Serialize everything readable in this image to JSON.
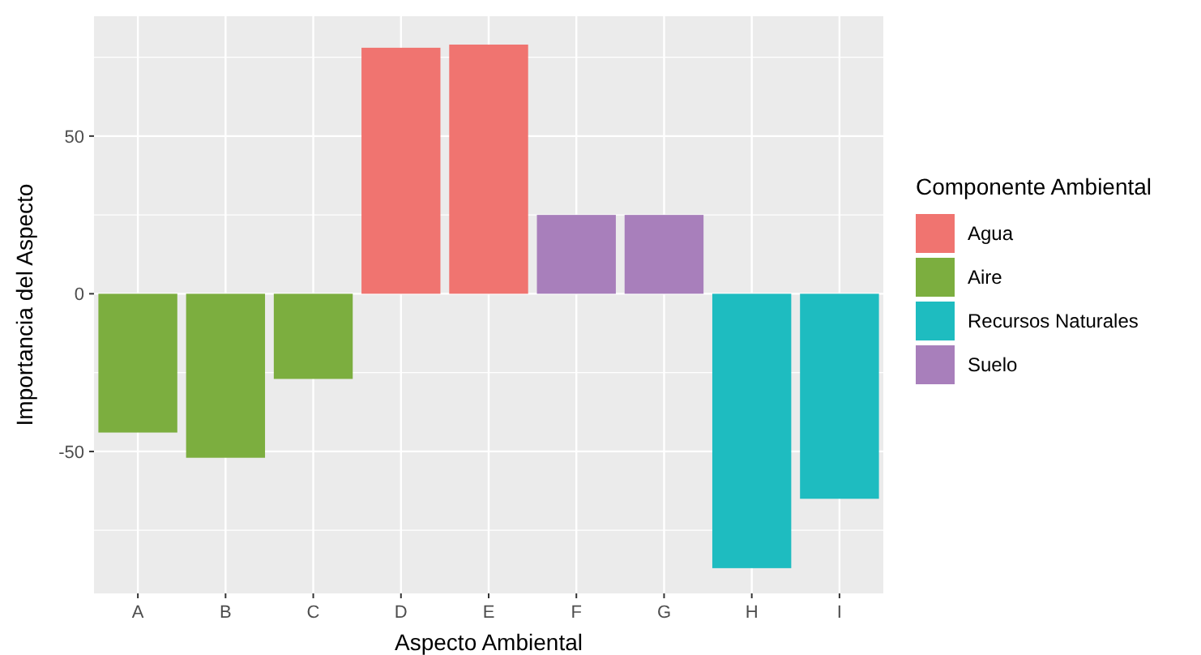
{
  "chart_data": {
    "type": "bar",
    "xlabel": "Aspecto Ambiental",
    "ylabel": "Importancia del Aspecto",
    "legend_title": "Componente Ambiental",
    "categories": [
      "A",
      "B",
      "C",
      "D",
      "E",
      "F",
      "G",
      "H",
      "I"
    ],
    "series": [
      {
        "name": "Agua",
        "color": "#f07470",
        "values": [
          null,
          null,
          null,
          78,
          79,
          null,
          null,
          null,
          null
        ]
      },
      {
        "name": "Aire",
        "color": "#7cae3f",
        "values": [
          -44,
          -52,
          -27,
          null,
          null,
          null,
          null,
          null,
          null
        ]
      },
      {
        "name": "Recursos Naturales",
        "color": "#1ebcc0",
        "values": [
          null,
          null,
          null,
          null,
          null,
          null,
          null,
          -87,
          -65
        ]
      },
      {
        "name": "Suelo",
        "color": "#a87fbb",
        "values": [
          null,
          null,
          null,
          null,
          null,
          25,
          25,
          null,
          null
        ]
      }
    ],
    "ylim": [
      -95,
      88
    ],
    "yticks": [
      -50,
      0,
      50
    ],
    "grid": true,
    "legend": "right"
  }
}
